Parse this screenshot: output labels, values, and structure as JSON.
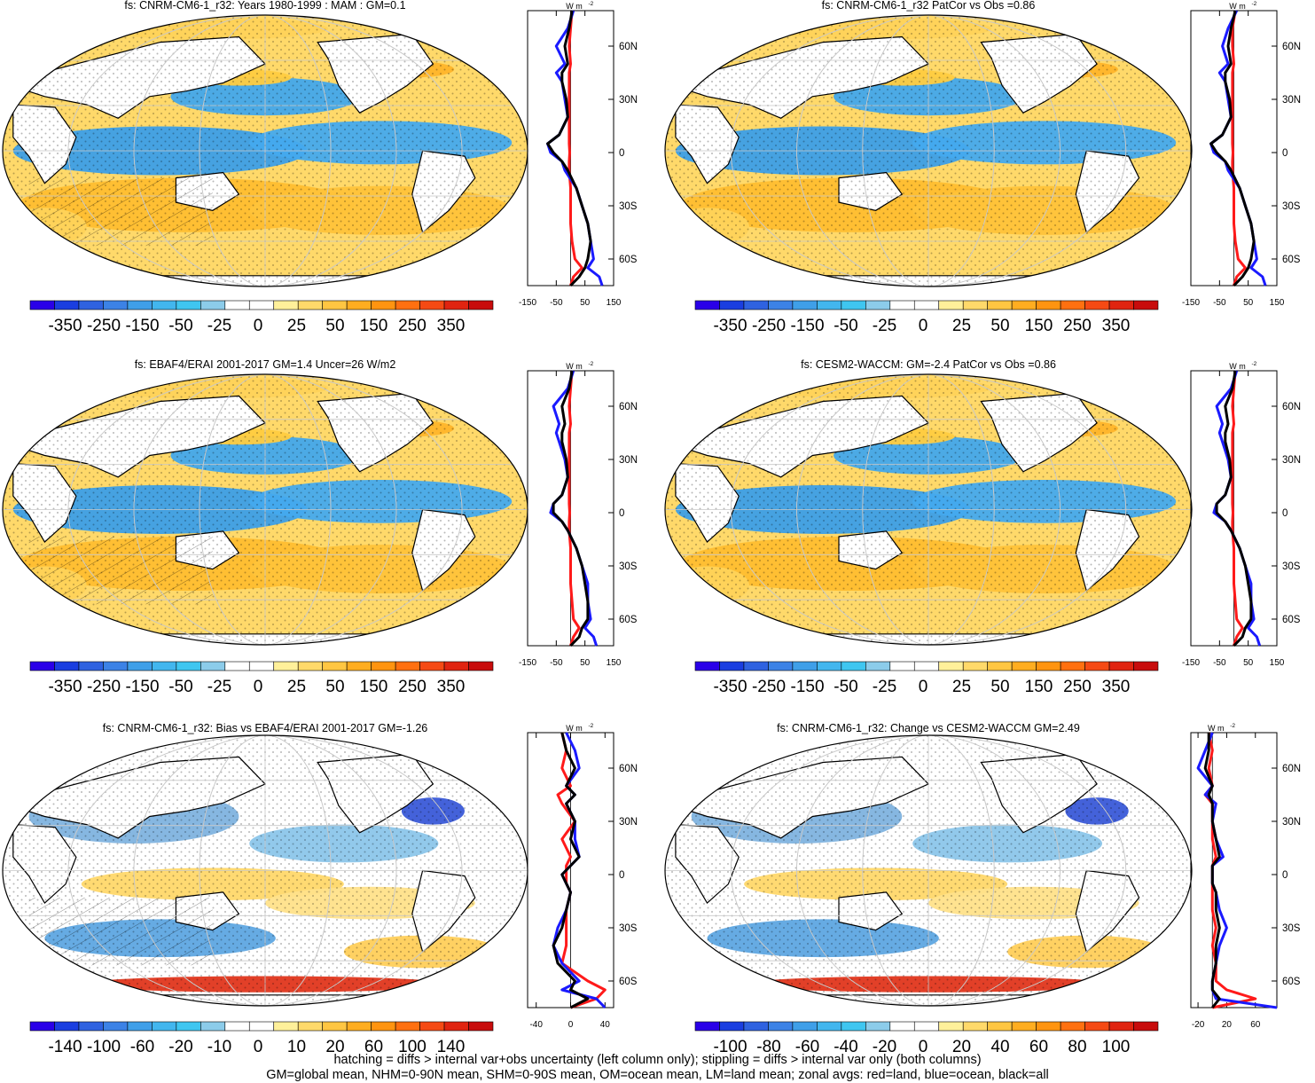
{
  "colorbars": {
    "main": {
      "colors": [
        "#2a00e8",
        "#1a3ee0",
        "#2f62e0",
        "#3c82e6",
        "#3f9fe8",
        "#42b6ee",
        "#3fc6f0",
        "#8cccea",
        "#ffffff",
        "#ffffff",
        "#fff09a",
        "#ffd96a",
        "#ffc642",
        "#ffad20",
        "#ff9410",
        "#ff7010",
        "#f54a14",
        "#e02410",
        "#c80c0c"
      ],
      "labels": [
        "-350",
        "-250",
        "-150",
        "-50",
        "-25",
        "0",
        "25",
        "50",
        "150",
        "250",
        "350"
      ]
    },
    "diff_left": {
      "colors": [
        "#2a00e8",
        "#1a3ee0",
        "#2f62e0",
        "#3c82e6",
        "#3f9fe8",
        "#42b6ee",
        "#3fc6f0",
        "#8cccea",
        "#ffffff",
        "#ffffff",
        "#fff09a",
        "#ffd96a",
        "#ffc642",
        "#ffad20",
        "#ff9410",
        "#ff7010",
        "#f54a14",
        "#e02410",
        "#c80c0c"
      ],
      "labels": [
        "-140",
        "-100",
        "-60",
        "-20",
        "-10",
        "0",
        "10",
        "20",
        "60",
        "100",
        "140"
      ]
    },
    "diff_right": {
      "colors": [
        "#2a00e8",
        "#1a3ee0",
        "#2f62e0",
        "#3c82e6",
        "#3f9fe8",
        "#42b6ee",
        "#3fc6f0",
        "#8cccea",
        "#ffffff",
        "#ffffff",
        "#fff09a",
        "#ffd96a",
        "#ffc642",
        "#ffad20",
        "#ff9410",
        "#ff7010",
        "#f54a14",
        "#e02410",
        "#c80c0c"
      ],
      "labels": [
        "-100",
        "-80",
        "-60",
        "-40",
        "-20",
        "0",
        "20",
        "40",
        "60",
        "80",
        "100"
      ]
    }
  },
  "zonal_axis": {
    "units": "W m",
    "units_sup": "-2",
    "lat_labels": [
      "60N",
      "30N",
      "0",
      "30S",
      "60S"
    ]
  },
  "chart_data": [
    {
      "type": "heatmap",
      "title": "fs: CNRM-CM6-1_r32: Years 1980-1999 : MAM : GM=0.1",
      "colorbar": "main",
      "zonal": {
        "xticks": [
          "-150",
          "-50",
          "50",
          "150"
        ],
        "xlim": [
          -150,
          150
        ],
        "lat": [
          80,
          70,
          60,
          50,
          45,
          40,
          30,
          20,
          10,
          5,
          0,
          -5,
          -10,
          -20,
          -30,
          -40,
          -50,
          -60,
          -65,
          -70,
          -75
        ],
        "land": [
          5,
          0,
          -5,
          0,
          -5,
          -5,
          -5,
          -5,
          -5,
          -5,
          -3,
          -5,
          -5,
          0,
          0,
          0,
          5,
          15,
          40,
          10,
          0
        ],
        "ocean": [
          10,
          -10,
          -50,
          -20,
          -50,
          -30,
          -20,
          -10,
          -40,
          -80,
          -70,
          -30,
          -20,
          20,
          40,
          60,
          70,
          80,
          60,
          100,
          110
        ],
        "all": [
          5,
          -5,
          -20,
          -10,
          -30,
          -30,
          -15,
          -10,
          -40,
          -80,
          -60,
          -30,
          -10,
          20,
          40,
          60,
          70,
          60,
          50,
          30,
          0
        ]
      }
    },
    {
      "type": "heatmap",
      "title": "fs: CNRM-CM6-1_r32 PatCor vs Obs =0.86",
      "colorbar": "main",
      "zonal": {
        "xticks": [
          "-150",
          "-50",
          "50",
          "150"
        ],
        "xlim": [
          -150,
          150
        ],
        "lat": [
          80,
          70,
          60,
          50,
          45,
          40,
          30,
          20,
          10,
          5,
          0,
          -5,
          -10,
          -20,
          -30,
          -40,
          -50,
          -60,
          -65,
          -70,
          -75
        ],
        "land": [
          5,
          -5,
          -5,
          0,
          -5,
          -5,
          -5,
          -5,
          -5,
          -5,
          -3,
          -5,
          -5,
          0,
          0,
          0,
          5,
          15,
          40,
          10,
          0
        ],
        "ocean": [
          10,
          -20,
          -40,
          -20,
          -50,
          -30,
          -20,
          -10,
          -40,
          -80,
          -70,
          -30,
          -20,
          20,
          40,
          60,
          70,
          80,
          60,
          100,
          110
        ],
        "all": [
          5,
          -10,
          -20,
          -10,
          -30,
          -30,
          -15,
          -10,
          -40,
          -80,
          -60,
          -30,
          -10,
          20,
          40,
          60,
          70,
          60,
          50,
          30,
          0
        ]
      }
    },
    {
      "type": "heatmap",
      "title": "fs: EBAF4/ERAI 2001-2017 GM=1.4 Uncer=26 W/m2",
      "colorbar": "main",
      "zonal": {
        "xticks": [
          "-150",
          "-50",
          "50",
          "150"
        ],
        "xlim": [
          -150,
          150
        ],
        "lat": [
          80,
          70,
          60,
          50,
          45,
          40,
          30,
          20,
          10,
          5,
          0,
          -5,
          -10,
          -20,
          -30,
          -40,
          -50,
          -60,
          -65,
          -70,
          -75
        ],
        "land": [
          5,
          0,
          -5,
          0,
          -5,
          -5,
          -5,
          -5,
          -5,
          -5,
          -3,
          -5,
          -5,
          0,
          0,
          0,
          5,
          10,
          30,
          10,
          0
        ],
        "ocean": [
          10,
          -10,
          -60,
          -40,
          -50,
          -40,
          -20,
          -10,
          -30,
          -60,
          -70,
          -30,
          -10,
          20,
          40,
          60,
          60,
          70,
          50,
          80,
          90
        ],
        "all": [
          5,
          -5,
          -30,
          -20,
          -30,
          -30,
          -15,
          -10,
          -30,
          -60,
          -60,
          -30,
          -10,
          20,
          40,
          50,
          60,
          60,
          40,
          30,
          0
        ]
      }
    },
    {
      "type": "heatmap",
      "title": "fs: CESM2-WACCM: GM=-2.4 PatCor vs Obs =0.86",
      "colorbar": "main",
      "zonal": {
        "xticks": [
          "-150",
          "-50",
          "50",
          "150"
        ],
        "xlim": [
          -150,
          150
        ],
        "lat": [
          80,
          70,
          60,
          50,
          45,
          40,
          30,
          20,
          10,
          5,
          0,
          -5,
          -10,
          -20,
          -30,
          -40,
          -50,
          -60,
          -65,
          -70,
          -75
        ],
        "land": [
          5,
          0,
          -5,
          0,
          -5,
          -5,
          -5,
          -5,
          -5,
          -5,
          -3,
          -5,
          -5,
          0,
          0,
          0,
          5,
          10,
          30,
          10,
          0
        ],
        "ocean": [
          10,
          -10,
          -60,
          -40,
          -50,
          -40,
          -20,
          -10,
          -30,
          -60,
          -70,
          -30,
          -10,
          20,
          40,
          60,
          60,
          70,
          50,
          80,
          90
        ],
        "all": [
          5,
          -5,
          -30,
          -20,
          -30,
          -30,
          -15,
          -10,
          -30,
          -60,
          -60,
          -30,
          -10,
          20,
          40,
          50,
          60,
          60,
          40,
          30,
          0
        ]
      }
    },
    {
      "type": "heatmap",
      "title": "fs: CNRM-CM6-1_r32: Bias vs EBAF4/ERAI 2001-2017 GM=-1.26",
      "colorbar": "diff_left",
      "zonal": {
        "xticks": [
          "-40",
          "0",
          "40"
        ],
        "xlim": [
          -50,
          50
        ],
        "lat": [
          80,
          70,
          60,
          50,
          45,
          40,
          30,
          20,
          10,
          5,
          0,
          -5,
          -10,
          -20,
          -30,
          -40,
          -50,
          -60,
          -65,
          -70,
          -75
        ],
        "land": [
          -10,
          -5,
          -10,
          0,
          -15,
          -10,
          5,
          -10,
          0,
          -5,
          -5,
          -5,
          0,
          -5,
          -5,
          -5,
          -10,
          20,
          40,
          30,
          0
        ],
        "ocean": [
          -5,
          5,
          10,
          -5,
          5,
          -5,
          5,
          5,
          10,
          0,
          -10,
          -5,
          0,
          -5,
          -15,
          -20,
          -10,
          10,
          -10,
          30,
          40
        ],
        "all": [
          -10,
          -5,
          5,
          -5,
          5,
          -5,
          5,
          0,
          10,
          0,
          -10,
          -5,
          0,
          -5,
          -10,
          -20,
          -15,
          5,
          0,
          20,
          0
        ]
      }
    },
    {
      "type": "heatmap",
      "title": "fs: CNRM-CM6-1_r32: Change vs CESM2-WACCM GM=2.49",
      "colorbar": "diff_right",
      "zonal": {
        "xticks": [
          "-20",
          "20",
          "60"
        ],
        "xlim": [
          -30,
          90
        ],
        "lat": [
          80,
          70,
          60,
          50,
          45,
          40,
          30,
          20,
          10,
          5,
          0,
          -5,
          -10,
          -20,
          -30,
          -40,
          -50,
          -60,
          -65,
          -70,
          -75
        ],
        "land": [
          -5,
          0,
          -5,
          0,
          -10,
          0,
          0,
          0,
          5,
          0,
          0,
          0,
          0,
          0,
          5,
          0,
          5,
          5,
          20,
          60,
          0
        ],
        "ocean": [
          0,
          -10,
          -20,
          0,
          -10,
          5,
          0,
          5,
          15,
          0,
          0,
          0,
          5,
          10,
          20,
          10,
          5,
          0,
          0,
          5,
          100
        ],
        "all": [
          -5,
          -5,
          -10,
          0,
          -5,
          0,
          0,
          5,
          10,
          0,
          0,
          0,
          5,
          5,
          10,
          5,
          5,
          0,
          0,
          10,
          0
        ]
      }
    }
  ],
  "footer": {
    "line1": "hatching = diffs > internal var+obs uncertainty (left column only); stippling = diffs > internal var only (both columns)",
    "line2": "GM=global mean, NHM=0-90N mean, SHM=0-90S mean, OM=ocean mean, LM=land mean; zonal avgs: red=land, blue=ocean, black=all"
  }
}
